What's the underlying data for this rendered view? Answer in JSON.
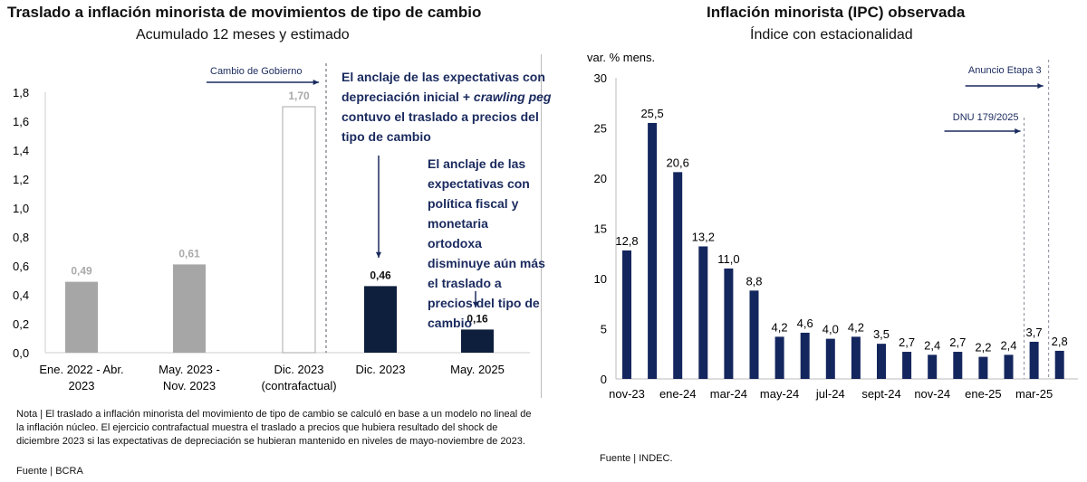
{
  "left": {
    "title": "Traslado a inflación minorista de movimientos de tipo de cambio",
    "subtitle": "Acumulado 12 meses y estimado",
    "note": "Nota | El traslado a inflación minorista del movimiento de tipo de cambio se calculó en base a un modelo no lineal de la inflación núcleo. El ejercicio contrafactual muestra el traslado a precios que hubiera resultado del shock de diciembre 2023 si las expectativas de depreciación se hubieran mantenido en niveles de mayo-noviembre de 2023.",
    "source": "Fuente | BCRA",
    "annotation_gov": "Cambio de Gobierno",
    "annotation_1a": "El anclaje de las expectativas con depreciación inicial + ",
    "annotation_1b": "crawling peg",
    "annotation_1c": " contuvo el traslado a precios del tipo de cambio",
    "annotation_2": "El anclaje de las expectativas con política fiscal y monetaria ortodoxa disminuye aún más el traslado a precios del tipo de cambio"
  },
  "right": {
    "title": "Inflación minorista (IPC) observada",
    "subtitle": "Índice con estacionalidad",
    "source": "Fuente | INDEC.",
    "annotation_dnu": "DNU 179/2025",
    "annotation_etapa": "Anuncio Etapa 3"
  },
  "chart_data": [
    {
      "type": "bar",
      "categories": [
        [
          "Ene. 2022 - Abr.",
          "2023"
        ],
        [
          "May. 2023 -",
          "Nov. 2023"
        ],
        [
          "Dic. 2023",
          "(contrafactual)"
        ],
        [
          "Dic. 2023"
        ],
        [
          "May. 2025"
        ]
      ],
      "values": [
        0.49,
        0.61,
        1.7,
        0.46,
        0.16
      ],
      "labels": [
        "0,49",
        "0,61",
        "1,70",
        "0,46",
        "0,16"
      ],
      "colors": [
        "#a6a6a6",
        "#a6a6a6",
        "#ffffff",
        "#0d1f3c",
        "#0d1f3c"
      ],
      "yticks": [
        "0,0",
        "0,2",
        "0,4",
        "0,6",
        "0,8",
        "1,0",
        "1,2",
        "1,4",
        "1,6",
        "1,8"
      ],
      "ylim": [
        0,
        1.8
      ],
      "grid": false
    },
    {
      "type": "bar",
      "ylabel": "var. % mens.",
      "categories": [
        "nov-23",
        "dic-23",
        "ene-24",
        "feb-24",
        "mar-24",
        "abr-24",
        "may-24",
        "jun-24",
        "jul-24",
        "ago-24",
        "sept-24",
        "oct-24",
        "nov-24",
        "dic-24",
        "ene-25",
        "feb-25",
        "mar-25",
        "abr-25"
      ],
      "tick_labels": [
        "nov-23",
        "ene-24",
        "mar-24",
        "may-24",
        "jul-24",
        "sept-24",
        "nov-24",
        "ene-25",
        "mar-25"
      ],
      "values": [
        12.8,
        25.5,
        20.6,
        13.2,
        11.0,
        8.8,
        4.2,
        4.6,
        4.0,
        4.2,
        3.5,
        2.7,
        2.4,
        2.7,
        2.2,
        2.4,
        3.7,
        2.8
      ],
      "labels": [
        "12,8",
        "25,5",
        "20,6",
        "13,2",
        "11,0",
        "8,8",
        "4,2",
        "4,6",
        "4,0",
        "4,2",
        "3,5",
        "2,7",
        "2,4",
        "2,7",
        "2,2",
        "2,4",
        "3,7",
        "2,8"
      ],
      "yticks": [
        "0",
        "5",
        "10",
        "15",
        "20",
        "25",
        "30"
      ],
      "ylim": [
        0,
        30
      ],
      "color": "#14265e",
      "grid": false
    }
  ]
}
